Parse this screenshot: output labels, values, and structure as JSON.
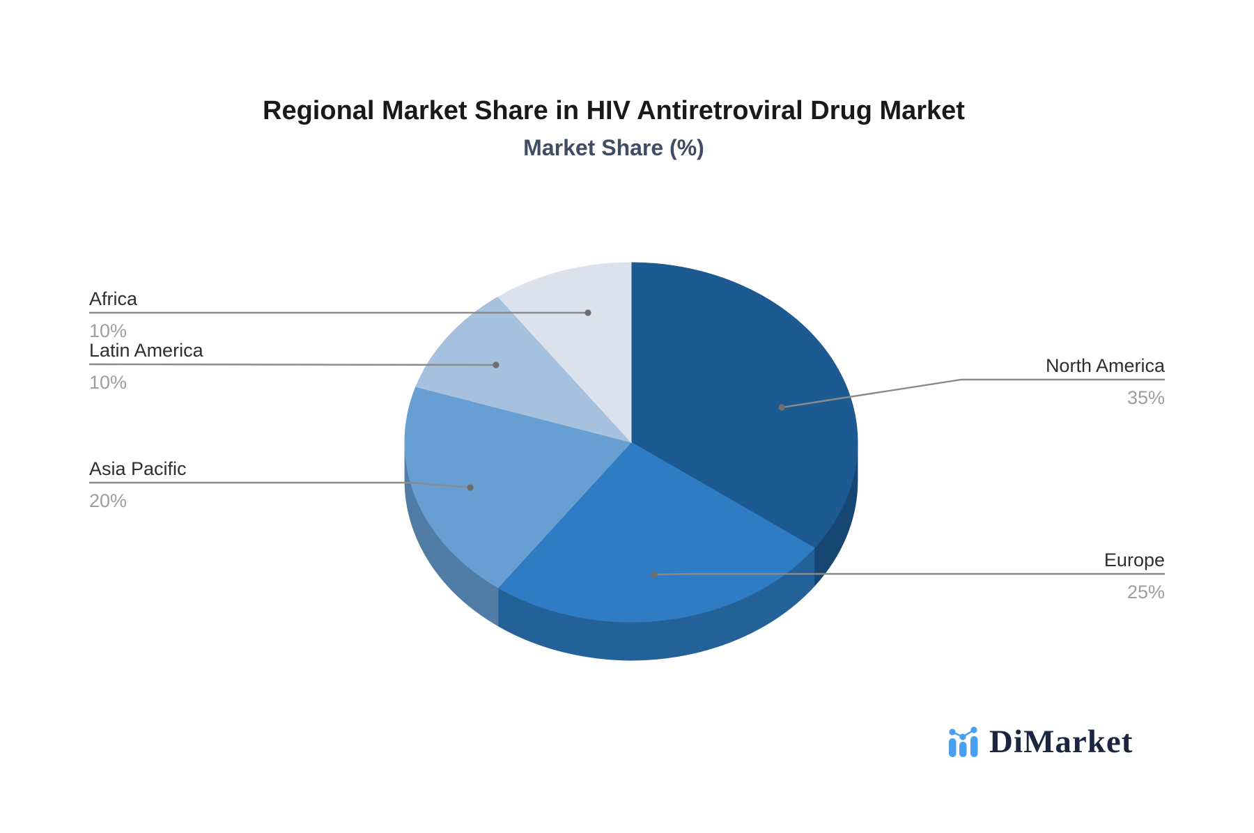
{
  "header": {
    "title": "Regional Market Share in HIV Antiretroviral Drug Market",
    "subtitle": "Market Share (%)"
  },
  "chart_data": {
    "type": "pie",
    "title": "Regional Market Share in HIV Antiretroviral Drug Market",
    "subtitle": "Market Share (%)",
    "series_name": "Market Share",
    "unit": "%",
    "effect": "3d",
    "start_angle_deg": 0,
    "direction": "clockwise",
    "slices": [
      {
        "name": "North America",
        "value": 35,
        "pct_label": "35%",
        "color": "#1d5a92"
      },
      {
        "name": "Europe",
        "value": 25,
        "pct_label": "25%",
        "color": "#2f7cc4"
      },
      {
        "name": "Asia Pacific",
        "value": 20,
        "pct_label": "20%",
        "color": "#689fd3"
      },
      {
        "name": "Latin America",
        "value": 10,
        "pct_label": "10%",
        "color": "#a6c1de"
      },
      {
        "name": "Africa",
        "value": 10,
        "pct_label": "10%",
        "color": "#dbe2ee"
      }
    ],
    "style": {
      "label_color": "#2e2e2e",
      "pct_color": "#9e9e9e",
      "connector_color": "#8a8a8a",
      "connector_dot_color": "#6e6e6e",
      "background": "#ffffff"
    },
    "legend": "none",
    "grid": false
  },
  "watermark": {
    "text": "DiMarket"
  }
}
